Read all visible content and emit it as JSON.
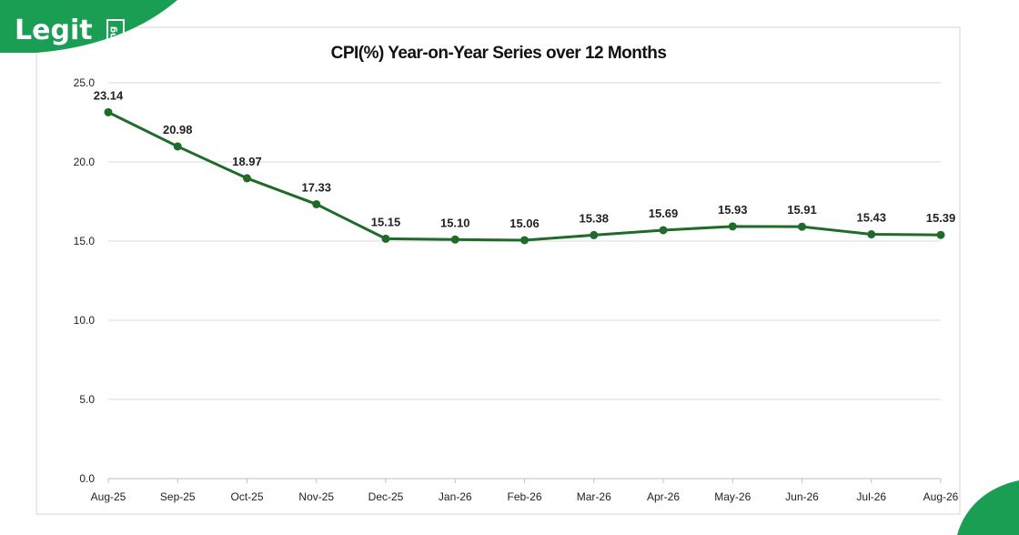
{
  "brand": {
    "name": "Legit",
    "suffix": "ng",
    "color": "#1a9e54"
  },
  "chart_data": {
    "type": "line",
    "title": "CPI(%) Year-on-Year Series over 12 Months",
    "categories": [
      "Aug-25",
      "Sep-25",
      "Oct-25",
      "Nov-25",
      "Dec-25",
      "Jan-26",
      "Feb-26",
      "Mar-26",
      "Apr-26",
      "May-26",
      "Jun-26",
      "Jul-26",
      "Aug-26"
    ],
    "series": [
      {
        "values": [
          23.14,
          20.98,
          18.97,
          17.33,
          15.15,
          15.1,
          15.06,
          15.38,
          15.69,
          15.93,
          15.91,
          15.43,
          15.39
        ],
        "color": "#1e6b2a"
      }
    ],
    "value_labels": [
      "23.14",
      "20.98",
      "18.97",
      "17.33",
      "15.15",
      "15.10",
      "15.06",
      "15.38",
      "15.69",
      "15.93",
      "15.91",
      "15.43",
      "15.39"
    ],
    "ylim": [
      0,
      25
    ],
    "yticks": [
      "0.0",
      "5.0",
      "10.0",
      "15.0",
      "20.0",
      "25.0"
    ],
    "grid": true,
    "legend": "none"
  }
}
